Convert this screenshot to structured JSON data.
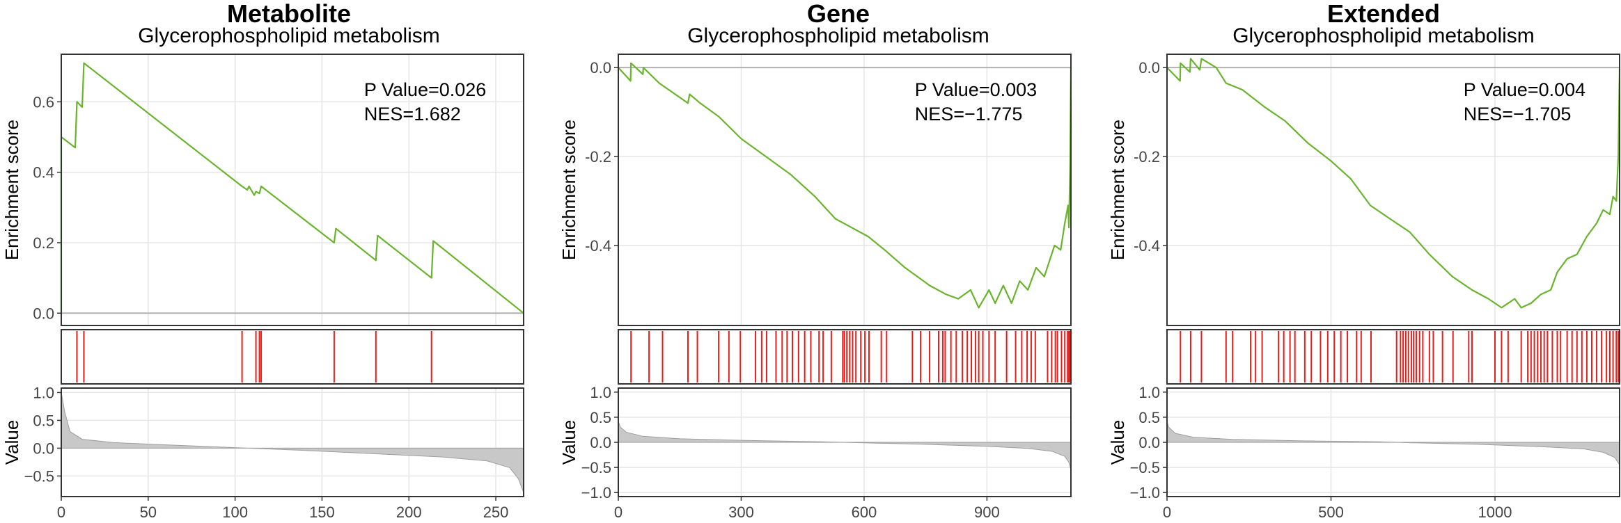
{
  "chart_data": [
    {
      "type": "line",
      "title": "Metabolite",
      "subtitle": "Glycerophospholipid metabolism",
      "annotation": {
        "p_value": "P Value=0.026",
        "nes": "NES=1.682"
      },
      "es_panel": {
        "ylabel": "Enrichment score",
        "xlim": [
          0,
          266
        ],
        "ylim": [
          -0.035,
          0.735
        ],
        "yticks": [
          0.0,
          0.2,
          0.4,
          0.6
        ],
        "ytick_labels": [
          "0.0",
          "0.2",
          "0.4",
          "0.6"
        ],
        "points": [
          [
            0,
            0
          ],
          [
            0,
            0.5
          ],
          [
            8,
            0.47
          ],
          [
            9,
            0.6
          ],
          [
            12,
            0.585
          ],
          [
            13,
            0.71
          ],
          [
            104,
            0.36
          ],
          [
            107,
            0.35
          ],
          [
            108,
            0.36
          ],
          [
            111,
            0.335
          ],
          [
            112,
            0.345
          ],
          [
            114,
            0.34
          ],
          [
            115,
            0.36
          ],
          [
            157,
            0.2
          ],
          [
            158,
            0.24
          ],
          [
            181,
            0.15
          ],
          [
            182,
            0.22
          ],
          [
            213,
            0.1
          ],
          [
            214,
            0.205
          ],
          [
            266,
            0
          ]
        ]
      },
      "hits": [
        0,
        9,
        13,
        104,
        112,
        114,
        115,
        157,
        181,
        213
      ],
      "value_panel": {
        "ylabel": "Value",
        "ylim": [
          -0.87,
          1.08
        ],
        "yticks": [
          -0.5,
          0.0,
          0.5,
          1.0
        ],
        "ytick_labels": [
          "−0.5",
          "0.0",
          "0.5",
          "1.0"
        ],
        "profile": [
          [
            0,
            1.0
          ],
          [
            2,
            0.65
          ],
          [
            5,
            0.3
          ],
          [
            12,
            0.16
          ],
          [
            30,
            0.1
          ],
          [
            60,
            0.06
          ],
          [
            100,
            0.01
          ],
          [
            140,
            -0.04
          ],
          [
            180,
            -0.1
          ],
          [
            220,
            -0.16
          ],
          [
            245,
            -0.23
          ],
          [
            258,
            -0.35
          ],
          [
            263,
            -0.55
          ],
          [
            266,
            -0.8
          ]
        ],
        "xlim": [
          0,
          266
        ],
        "xticks": [
          0,
          50,
          100,
          150,
          200,
          250
        ],
        "xtick_labels": [
          "0",
          "50",
          "100",
          "150",
          "200",
          "250"
        ]
      }
    },
    {
      "type": "line",
      "title": "Gene",
      "subtitle": "Glycerophospholipid metabolism",
      "annotation": {
        "p_value": "P Value=0.003",
        "nes": "NES=−1.775"
      },
      "es_panel": {
        "ylabel": "Enrichment score",
        "xlim": [
          0,
          1105
        ],
        "ylim": [
          -0.58,
          0.03
        ],
        "yticks": [
          0.0,
          -0.2,
          -0.4
        ],
        "ytick_labels": [
          "0.0",
          "-0.2",
          "-0.4"
        ],
        "points": [
          [
            0,
            0
          ],
          [
            30,
            -0.03
          ],
          [
            31,
            0.01
          ],
          [
            60,
            -0.015
          ],
          [
            61,
            0.0
          ],
          [
            100,
            -0.035
          ],
          [
            170,
            -0.08
          ],
          [
            174,
            -0.06
          ],
          [
            200,
            -0.08
          ],
          [
            245,
            -0.11
          ],
          [
            300,
            -0.16
          ],
          [
            360,
            -0.2
          ],
          [
            420,
            -0.24
          ],
          [
            480,
            -0.29
          ],
          [
            530,
            -0.34
          ],
          [
            570,
            -0.36
          ],
          [
            610,
            -0.38
          ],
          [
            650,
            -0.41
          ],
          [
            700,
            -0.45
          ],
          [
            760,
            -0.49
          ],
          [
            800,
            -0.51
          ],
          [
            830,
            -0.52
          ],
          [
            860,
            -0.5
          ],
          [
            880,
            -0.54
          ],
          [
            905,
            -0.5
          ],
          [
            920,
            -0.53
          ],
          [
            940,
            -0.49
          ],
          [
            960,
            -0.53
          ],
          [
            980,
            -0.48
          ],
          [
            1000,
            -0.5
          ],
          [
            1020,
            -0.45
          ],
          [
            1040,
            -0.47
          ],
          [
            1065,
            -0.4
          ],
          [
            1080,
            -0.41
          ],
          [
            1090,
            -0.35
          ],
          [
            1098,
            -0.31
          ],
          [
            1100,
            -0.36
          ],
          [
            1103,
            -0.22
          ],
          [
            1105,
            0.0
          ]
        ]
      },
      "hits": [
        31,
        75,
        108,
        170,
        193,
        245,
        270,
        298,
        335,
        350,
        362,
        385,
        400,
        412,
        425,
        440,
        455,
        470,
        490,
        500,
        520,
        548,
        552,
        558,
        565,
        572,
        580,
        592,
        602,
        612,
        642,
        655,
        718,
        738,
        760,
        782,
        792,
        798,
        812,
        825,
        840,
        852,
        862,
        872,
        880,
        890,
        905,
        920,
        948,
        970,
        985,
        998,
        1008,
        1018,
        1048,
        1058,
        1067,
        1072,
        1082,
        1090,
        1097,
        1100,
        1103
      ],
      "value_panel": {
        "ylabel": "Value",
        "ylim": [
          -1.08,
          1.08
        ],
        "yticks": [
          -1.0,
          -0.5,
          0.0,
          0.5,
          1.0
        ],
        "ytick_labels": [
          "−1.0",
          "−0.5",
          "0.0",
          "0.5",
          "1.0"
        ],
        "profile": [
          [
            0,
            0.42
          ],
          [
            5,
            0.3
          ],
          [
            20,
            0.2
          ],
          [
            60,
            0.12
          ],
          [
            150,
            0.07
          ],
          [
            300,
            0.04
          ],
          [
            500,
            0.01
          ],
          [
            600,
            -0.01
          ],
          [
            750,
            -0.04
          ],
          [
            900,
            -0.08
          ],
          [
            1000,
            -0.12
          ],
          [
            1060,
            -0.18
          ],
          [
            1090,
            -0.28
          ],
          [
            1100,
            -0.4
          ],
          [
            1105,
            -0.55
          ]
        ],
        "xlim": [
          0,
          1105
        ],
        "xticks": [
          0,
          300,
          600,
          900
        ],
        "xtick_labels": [
          "0",
          "300",
          "600",
          "900"
        ]
      }
    },
    {
      "type": "line",
      "title": "Extended",
      "subtitle": "Glycerophospholipid metabolism",
      "annotation": {
        "p_value": "P Value=0.004",
        "nes": "NES=−1.705"
      },
      "es_panel": {
        "ylabel": "Enrichment score",
        "xlim": [
          0,
          1380
        ],
        "ylim": [
          -0.58,
          0.03
        ],
        "yticks": [
          0.0,
          -0.2,
          -0.4
        ],
        "ytick_labels": [
          "0.0",
          "-0.2",
          "-0.4"
        ],
        "points": [
          [
            0,
            0
          ],
          [
            40,
            -0.03
          ],
          [
            41,
            0.01
          ],
          [
            70,
            -0.01
          ],
          [
            72,
            0.02
          ],
          [
            100,
            -0.005
          ],
          [
            105,
            0.02
          ],
          [
            150,
            0.0
          ],
          [
            180,
            -0.035
          ],
          [
            230,
            -0.05
          ],
          [
            300,
            -0.09
          ],
          [
            360,
            -0.12
          ],
          [
            430,
            -0.17
          ],
          [
            500,
            -0.21
          ],
          [
            560,
            -0.25
          ],
          [
            620,
            -0.31
          ],
          [
            680,
            -0.34
          ],
          [
            740,
            -0.37
          ],
          [
            800,
            -0.42
          ],
          [
            870,
            -0.47
          ],
          [
            930,
            -0.5
          ],
          [
            980,
            -0.52
          ],
          [
            1020,
            -0.54
          ],
          [
            1060,
            -0.52
          ],
          [
            1080,
            -0.54
          ],
          [
            1110,
            -0.53
          ],
          [
            1140,
            -0.51
          ],
          [
            1170,
            -0.5
          ],
          [
            1190,
            -0.46
          ],
          [
            1220,
            -0.43
          ],
          [
            1250,
            -0.42
          ],
          [
            1280,
            -0.38
          ],
          [
            1310,
            -0.35
          ],
          [
            1330,
            -0.32
          ],
          [
            1350,
            -0.33
          ],
          [
            1360,
            -0.29
          ],
          [
            1370,
            -0.3
          ],
          [
            1376,
            -0.2
          ],
          [
            1380,
            0.0
          ]
        ]
      },
      "hits": [
        41,
        72,
        105,
        180,
        200,
        255,
        270,
        290,
        340,
        356,
        375,
        390,
        420,
        440,
        468,
        490,
        510,
        530,
        550,
        578,
        592,
        622,
        700,
        712,
        720,
        728,
        736,
        745,
        752,
        760,
        770,
        780,
        800,
        812,
        840,
        872,
        920,
        930,
        1000,
        1020,
        1040,
        1080,
        1100,
        1110,
        1120,
        1130,
        1140,
        1150,
        1160,
        1175,
        1190,
        1200,
        1220,
        1235,
        1250,
        1265,
        1280,
        1295,
        1310,
        1325,
        1340,
        1350,
        1360,
        1370,
        1376
      ],
      "value_panel": {
        "ylabel": "Value",
        "ylim": [
          -1.08,
          1.08
        ],
        "yticks": [
          -1.0,
          -0.5,
          0.0,
          0.5,
          1.0
        ],
        "ytick_labels": [
          "−1.0",
          "−0.5",
          "0.0",
          "0.5",
          "1.0"
        ],
        "profile": [
          [
            0,
            0.42
          ],
          [
            5,
            0.3
          ],
          [
            25,
            0.18
          ],
          [
            80,
            0.1
          ],
          [
            200,
            0.06
          ],
          [
            400,
            0.03
          ],
          [
            650,
            0.01
          ],
          [
            750,
            -0.01
          ],
          [
            950,
            -0.04
          ],
          [
            1150,
            -0.09
          ],
          [
            1270,
            -0.13
          ],
          [
            1330,
            -0.2
          ],
          [
            1365,
            -0.3
          ],
          [
            1380,
            -0.45
          ]
        ],
        "xlim": [
          0,
          1380
        ],
        "xticks": [
          0,
          500,
          1000
        ],
        "xtick_labels": [
          "0",
          "500",
          "1000"
        ]
      }
    }
  ],
  "colors": {
    "es_line": "#6ab42d",
    "hit_line": "#e4201d",
    "bar": "#9e9e9e",
    "grid": "#e5e5e5",
    "zero_line": "#b0b0b0"
  }
}
